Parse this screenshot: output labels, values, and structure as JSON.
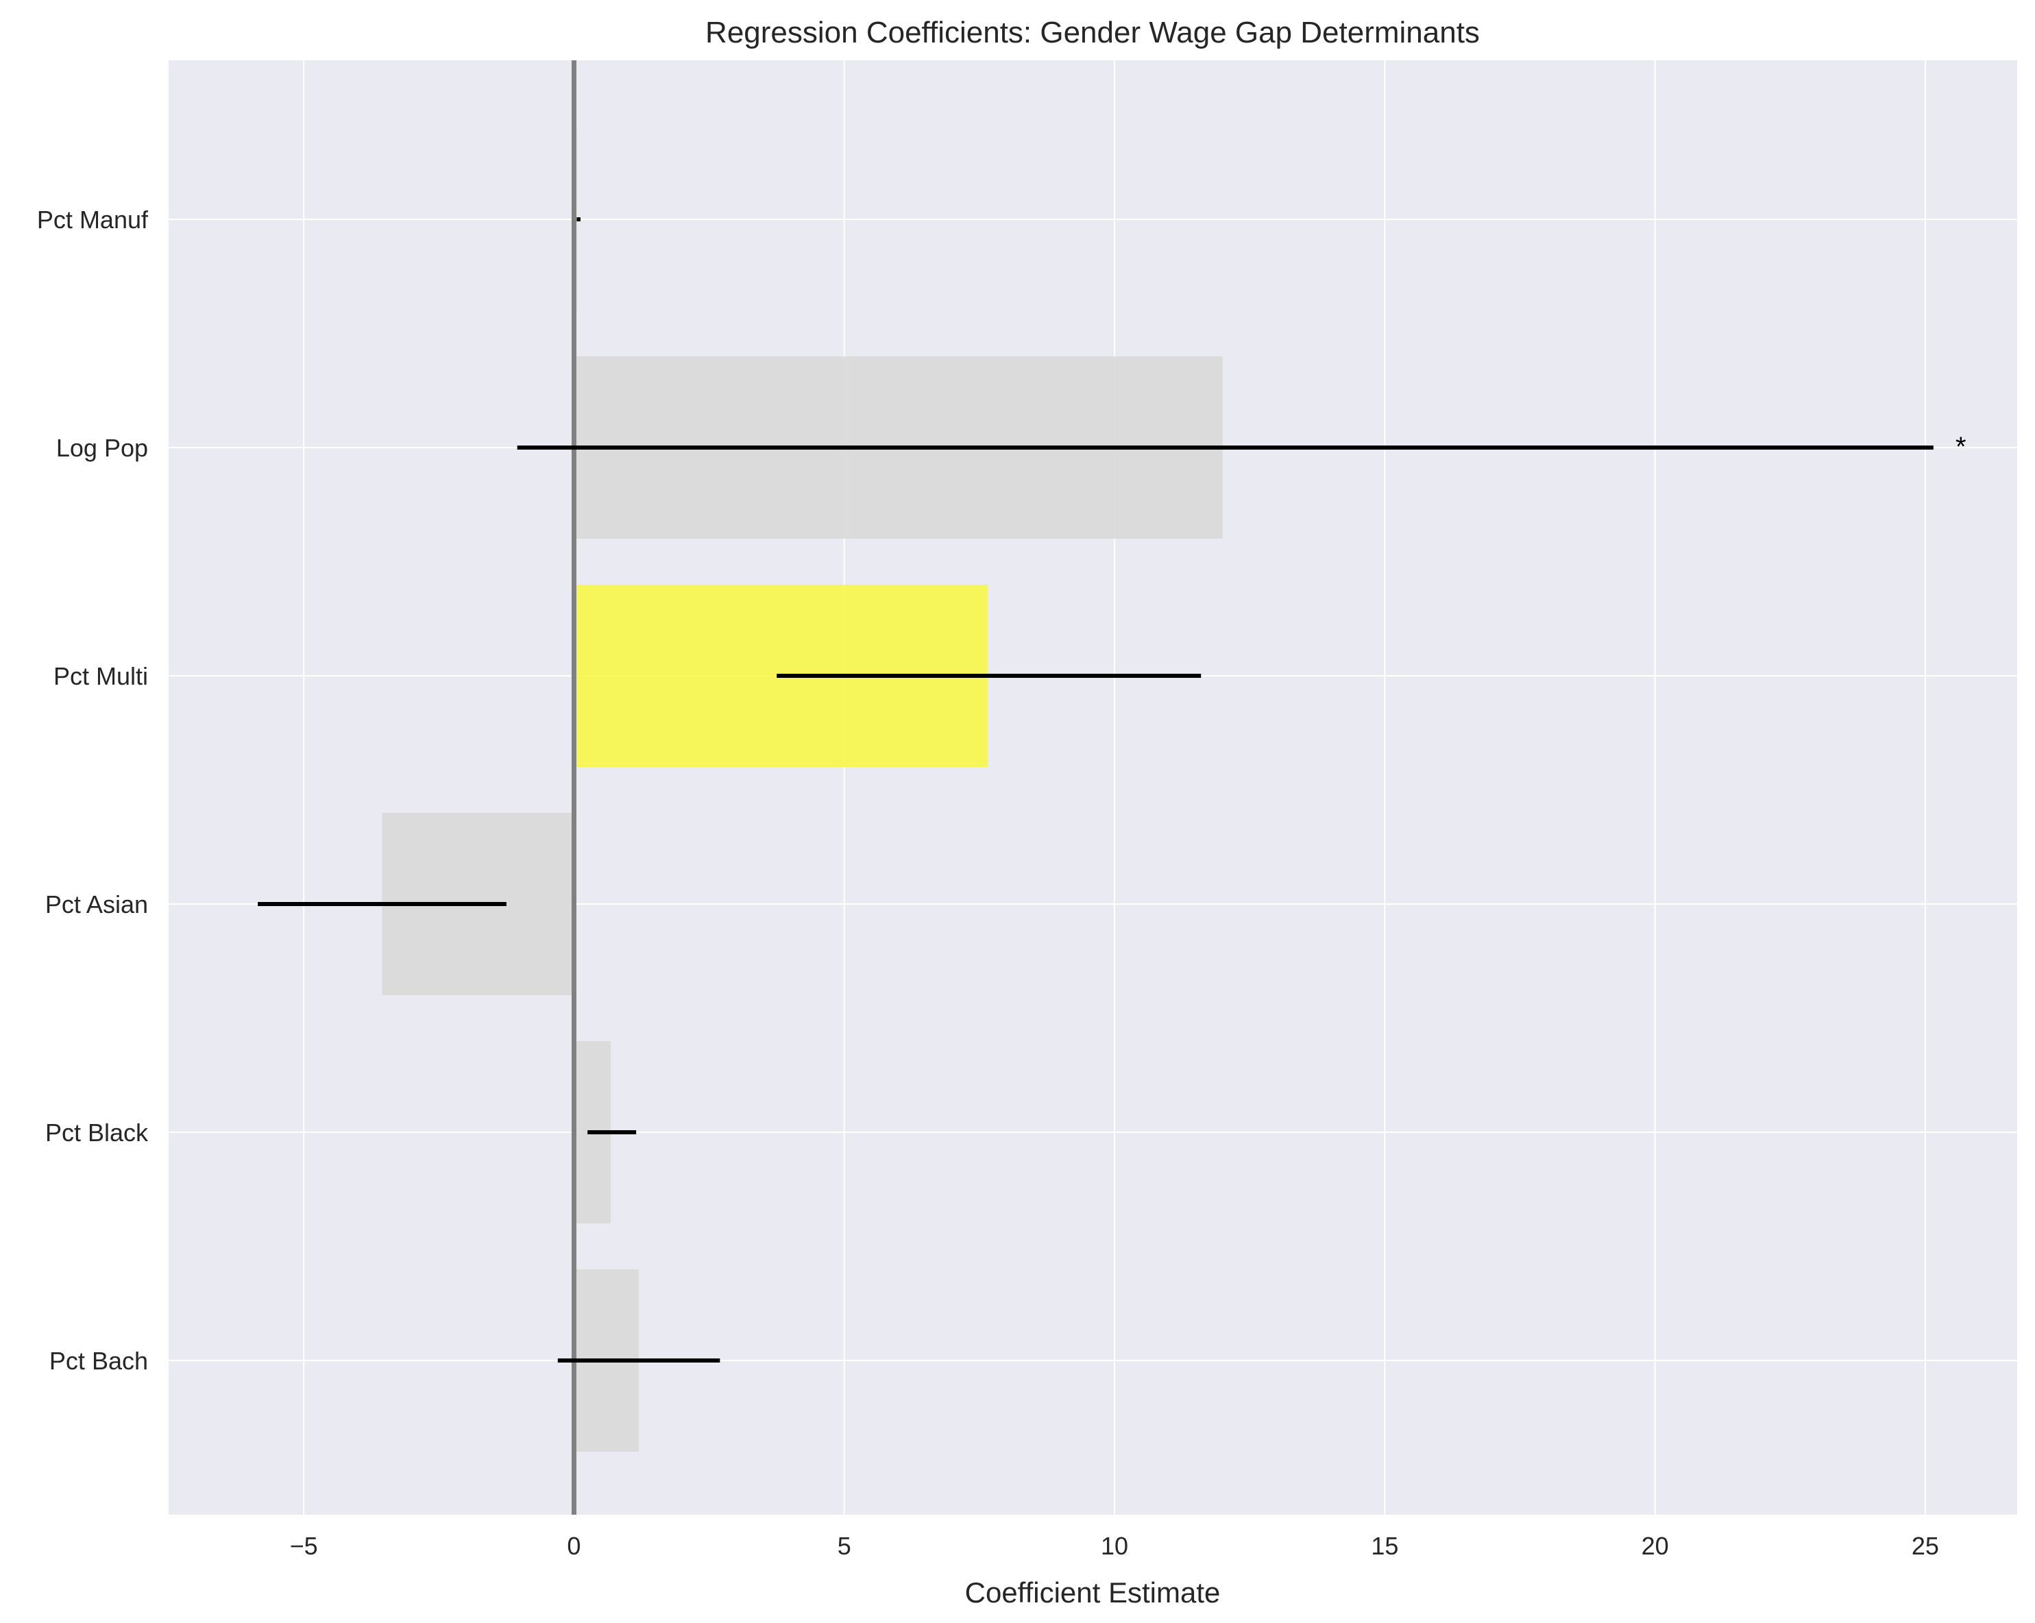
{
  "chart_data": {
    "type": "bar",
    "orientation": "horizontal",
    "title": "Regression Coefficients: Gender Wage Gap Determinants",
    "xlabel": "Coefficient Estimate",
    "ylabel": "",
    "xlim": [
      -7.5,
      26.7
    ],
    "xticks": [
      -5,
      0,
      5,
      10,
      15,
      20,
      25
    ],
    "xtick_labels": [
      "−5",
      "0",
      "5",
      "10",
      "15",
      "20",
      "25"
    ],
    "grid": true,
    "categories": [
      "Pct Bach",
      "Pct Black",
      "Pct Asian",
      "Pct Multi",
      "Log Pop",
      "Pct Manuf"
    ],
    "values": [
      1.2,
      0.68,
      -3.55,
      7.65,
      12.0,
      0.05
    ],
    "ci_low": [
      -0.3,
      0.25,
      -5.85,
      3.75,
      -1.05,
      0.05
    ],
    "ci_high": [
      2.7,
      1.15,
      -1.25,
      11.6,
      25.15,
      0.12
    ],
    "annotations": [
      "",
      "",
      "",
      "",
      "*",
      ""
    ],
    "bar_colors": [
      "#d9d9d9",
      "#d9d9d9",
      "#d9d9d9",
      "#f7f74a",
      "#d9d9d9",
      "#d9d9d9"
    ],
    "zero_line": true
  },
  "colors": {
    "plot_background": "#eaeaf2",
    "grid": "#ffffff",
    "error_bar": "#000000",
    "zero_line": "#808080"
  }
}
